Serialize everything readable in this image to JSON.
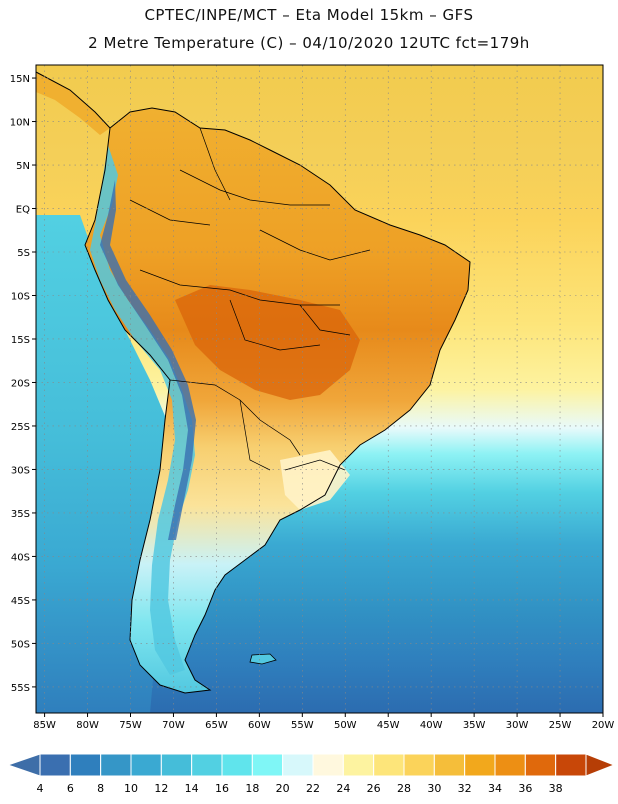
{
  "header": {
    "line1": "CPTEC/INPE/MCT –  Eta Model 15km – GFS",
    "line2": "2 Metre Temperature (C) – 04/10/2020 12UTC fct=179h"
  },
  "map": {
    "lat_labels": [
      "15N",
      "10N",
      "5N",
      "EQ",
      "5S",
      "10S",
      "15S",
      "20S",
      "25S",
      "30S",
      "35S",
      "40S",
      "45S",
      "50S",
      "55S"
    ],
    "lat_values": [
      15,
      10,
      5,
      0,
      -5,
      -10,
      -15,
      -20,
      -25,
      -30,
      -35,
      -40,
      -45,
      -50,
      -55
    ],
    "lon_labels": [
      "85W",
      "80W",
      "75W",
      "70W",
      "65W",
      "60W",
      "55W",
      "50W",
      "45W",
      "40W",
      "35W",
      "30W",
      "25W",
      "20W"
    ],
    "lon_values": [
      -85,
      -80,
      -75,
      -70,
      -65,
      -60,
      -55,
      -50,
      -45,
      -40,
      -35,
      -30,
      -25,
      -20
    ],
    "lat_range": [
      -58,
      16.5
    ],
    "lon_range": [
      -86,
      -20
    ]
  },
  "colorbar": {
    "labels": [
      "4",
      "6",
      "8",
      "10",
      "12",
      "14",
      "16",
      "18",
      "20",
      "22",
      "24",
      "26",
      "28",
      "30",
      "32",
      "34",
      "36",
      "38"
    ],
    "colors": [
      "#3a6fb0",
      "#2f7fbd",
      "#3596c7",
      "#3aa9d2",
      "#45bdd9",
      "#52d0e2",
      "#60e4ec",
      "#7ff6f6",
      "#d7f8fb",
      "#fff8de",
      "#fdf3a0",
      "#fde57a",
      "#fbd35a",
      "#f5be3a",
      "#f2a81c",
      "#ed8f14",
      "#e0690c",
      "#c84708"
    ],
    "under_color": "#3e6ea8",
    "over_color": "#b63e06"
  }
}
